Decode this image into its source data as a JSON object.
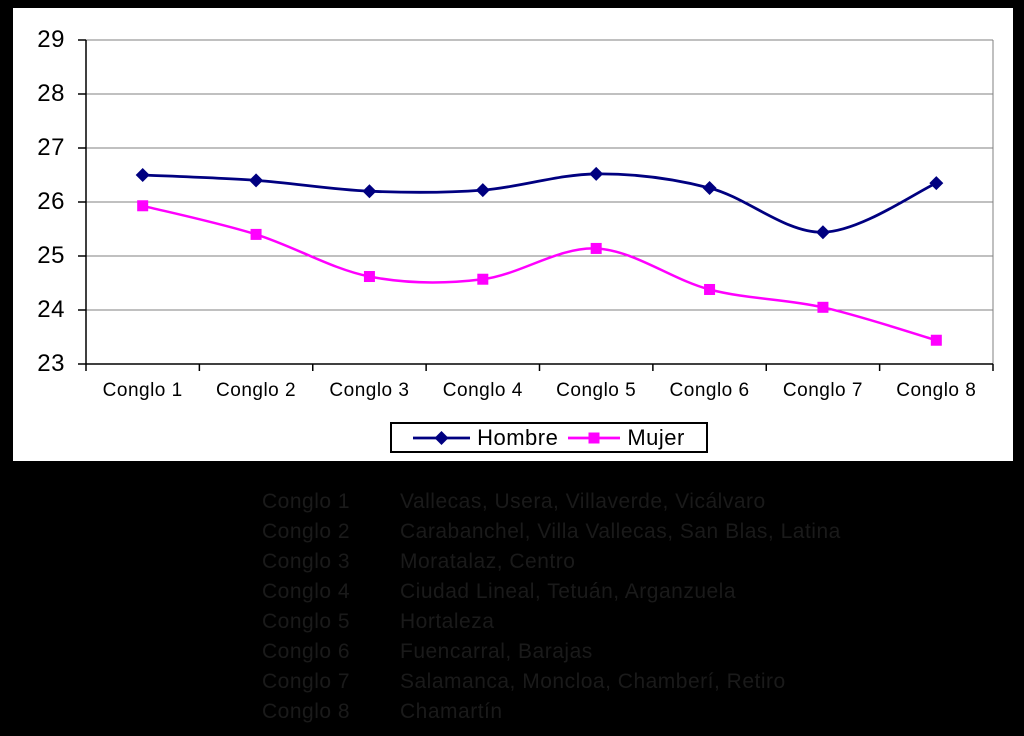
{
  "page": {
    "background": "#000000"
  },
  "chart_data": {
    "type": "line",
    "smoothed": true,
    "title": "",
    "xlabel": "",
    "ylabel": "",
    "categories": [
      "Conglo 1",
      "Conglo 2",
      "Conglo 3",
      "Conglo 4",
      "Conglo 5",
      "Conglo 6",
      "Conglo 7",
      "Conglo 8"
    ],
    "series": [
      {
        "name": "Hombre",
        "color": "#000080",
        "marker": "diamond",
        "line_width": 2.8,
        "values": [
          26.5,
          26.4,
          26.2,
          26.22,
          26.52,
          26.26,
          25.44,
          26.35
        ]
      },
      {
        "name": "Mujer",
        "color": "#FF00FF",
        "marker": "square",
        "line_width": 2.5,
        "values": [
          25.93,
          25.4,
          24.62,
          24.57,
          25.14,
          24.38,
          24.05,
          23.44
        ]
      }
    ],
    "ylim": [
      23,
      29
    ],
    "yticks": [
      29,
      28,
      27,
      26,
      25,
      24,
      23
    ],
    "grid": true,
    "gridline_color": "#808080",
    "axis_color": "#000000",
    "plot_background": "#FFFFFF",
    "legend_position": "bottom-center"
  },
  "legend": {
    "items": [
      {
        "label": "Hombre"
      },
      {
        "label": "Mujer"
      }
    ]
  },
  "footnotes": {
    "text_color": "#1a1a1a",
    "rows": [
      {
        "label": "Conglo 1",
        "value": "Vallecas, Usera, Villaverde, Vicálvaro"
      },
      {
        "label": "Conglo 2",
        "value": "Carabanchel, Villa Vallecas, San Blas, Latina"
      },
      {
        "label": "Conglo 3",
        "value": "Moratalaz, Centro"
      },
      {
        "label": "Conglo 4",
        "value": "Ciudad Lineal, Tetuán, Arganzuela"
      },
      {
        "label": "Conglo 5",
        "value": "Hortaleza"
      },
      {
        "label": "Conglo 6",
        "value": "Fuencarral, Barajas"
      },
      {
        "label": "Conglo 7",
        "value": "Salamanca, Moncloa, Chamberí, Retiro"
      },
      {
        "label": "Conglo 8",
        "value": "Chamartín"
      }
    ]
  }
}
